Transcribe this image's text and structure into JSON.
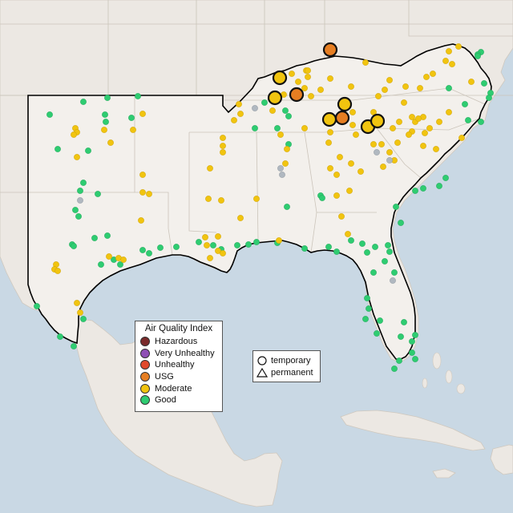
{
  "legend": {
    "title": "Air Quality Index",
    "items": [
      {
        "label": "Hazardous",
        "color": "#7a2b2b"
      },
      {
        "label": "Very Unhealthy",
        "color": "#8e4fb5"
      },
      {
        "label": "Unhealthy",
        "color": "#e0492c"
      },
      {
        "label": "USG",
        "color": "#e67e22"
      },
      {
        "label": "Moderate",
        "color": "#f1c40f"
      },
      {
        "label": "Good",
        "color": "#2ecc71"
      }
    ]
  },
  "shape_legend": {
    "items": [
      {
        "label": "temporary",
        "shape": "circle"
      },
      {
        "label": "permanent",
        "shape": "triangle"
      }
    ]
  },
  "colors": {
    "ocean": "#c9d8e4",
    "land": "#ece8e3",
    "region_land": "#f2efeb",
    "outside_land": "#e8e4de",
    "border": "#c9c2b8",
    "region_outline": "#000000",
    "no_data": "#b0b8c0"
  }
}
